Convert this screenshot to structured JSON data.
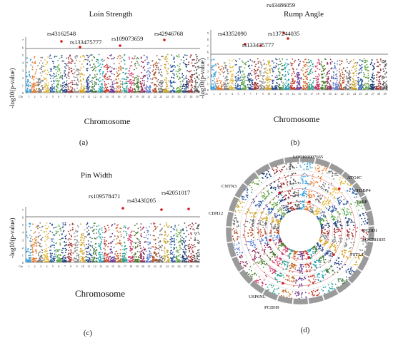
{
  "panel_a": {
    "title": "Loin Strength",
    "ylabel": "-log10(p-value)",
    "xlabel": "Chromosome",
    "caption": "(a)",
    "snps": [
      "rs43162548",
      "rs133475777",
      "rs109073659",
      "rs42946768"
    ]
  },
  "panel_b": {
    "title": "Rump Angle",
    "ylabel": "-log10(p-value)",
    "xlabel": "Chromosome",
    "caption": "(b)",
    "snps": [
      "rs43486059",
      "rs43352090",
      "rs137244035",
      "rs133475777"
    ]
  },
  "panel_c": {
    "title": "Pin Width",
    "ylabel": "-log10(p-value)",
    "xlabel": "Chromosome",
    "caption": "(c)",
    "snps": [
      "rs109578471",
      "rs43430205",
      "rs42051017"
    ]
  },
  "panel_d": {
    "caption": "(d)",
    "genes": [
      "LOC101907665",
      "ATG4C",
      "SH3BP4",
      "TARP",
      "DTHD1",
      "LOC781835",
      "FSTL4",
      "PCDH9",
      "USP6NL",
      "CDH12",
      "CNTN3"
    ]
  },
  "chart_data": [
    {
      "type": "scatter",
      "title": "Loin Strength",
      "xlabel": "Chromosome",
      "ylabel": "-log10(p-value)",
      "categories": [
        "Chr",
        "1",
        "2",
        "3",
        "4",
        "5",
        "6",
        "7",
        "8",
        "9",
        "10",
        "11",
        "12",
        "13",
        "14",
        "15",
        "16",
        "17",
        "18",
        "19",
        "20",
        "21",
        "22",
        "23",
        "24",
        "25",
        "26",
        "27",
        "28",
        "29"
      ],
      "yticks": [
        "0",
        "1",
        "2",
        "3",
        "4",
        "5",
        "6",
        "7"
      ],
      "highlighted_snps": [
        "rs43162548",
        "rs133475777",
        "rs109073659",
        "rs42946768"
      ]
    },
    {
      "type": "scatter",
      "title": "Rump Angle",
      "xlabel": "Chromosome",
      "ylabel": "-log10(p-value)",
      "categories": [
        "Chr",
        "1",
        "2",
        "3",
        "4",
        "5",
        "6",
        "7",
        "8",
        "9",
        "10",
        "11",
        "12",
        "13",
        "14",
        "15",
        "16",
        "17",
        "18",
        "19",
        "20",
        "21",
        "22",
        "23",
        "24",
        "25",
        "26",
        "27",
        "28",
        "29"
      ],
      "yticks": [
        "0",
        "1",
        "2",
        "3",
        "4",
        "5",
        "6",
        "7",
        "8",
        "9"
      ],
      "highlighted_snps": [
        "rs43486059",
        "rs43352090",
        "rs137244035",
        "rs133475777"
      ]
    },
    {
      "type": "scatter",
      "title": "Pin Width",
      "xlabel": "Chromosome",
      "ylabel": "-log10(p-value)",
      "categories": [
        "Chr",
        "1",
        "2",
        "3",
        "4",
        "5",
        "6",
        "7",
        "8",
        "9",
        "10",
        "11",
        "12",
        "13",
        "14",
        "15",
        "16",
        "17",
        "18",
        "19",
        "20",
        "21",
        "22",
        "23",
        "24",
        "25",
        "26",
        "27",
        "28",
        "29"
      ],
      "yticks": [
        "0",
        "1",
        "2",
        "3",
        "4",
        "5",
        "6",
        "7"
      ],
      "highlighted_snps": [
        "rs109578471",
        "rs43430205",
        "rs42051017"
      ]
    }
  ],
  "colors": [
    "#3aa0d8",
    "#e8792b",
    "#7a7a7a",
    "#e2b83a",
    "#2f5fa8",
    "#5aa84a",
    "#1f3f7a",
    "#a83232",
    "#8c8c8c",
    "#d4a017",
    "#2b4a8c",
    "#3f7a3f",
    "#1aa0b0",
    "#c0392b",
    "#6c3d91",
    "#c86b2a",
    "#2f9e8f",
    "#cc3366",
    "#4a7a2a",
    "#8e2a55",
    "#5a7fd0",
    "#b2502a",
    "#6f6f6f",
    "#c9a227",
    "#2a5aa0",
    "#5c9e3a",
    "#173b73",
    "#9b2c2c",
    "#555555"
  ]
}
